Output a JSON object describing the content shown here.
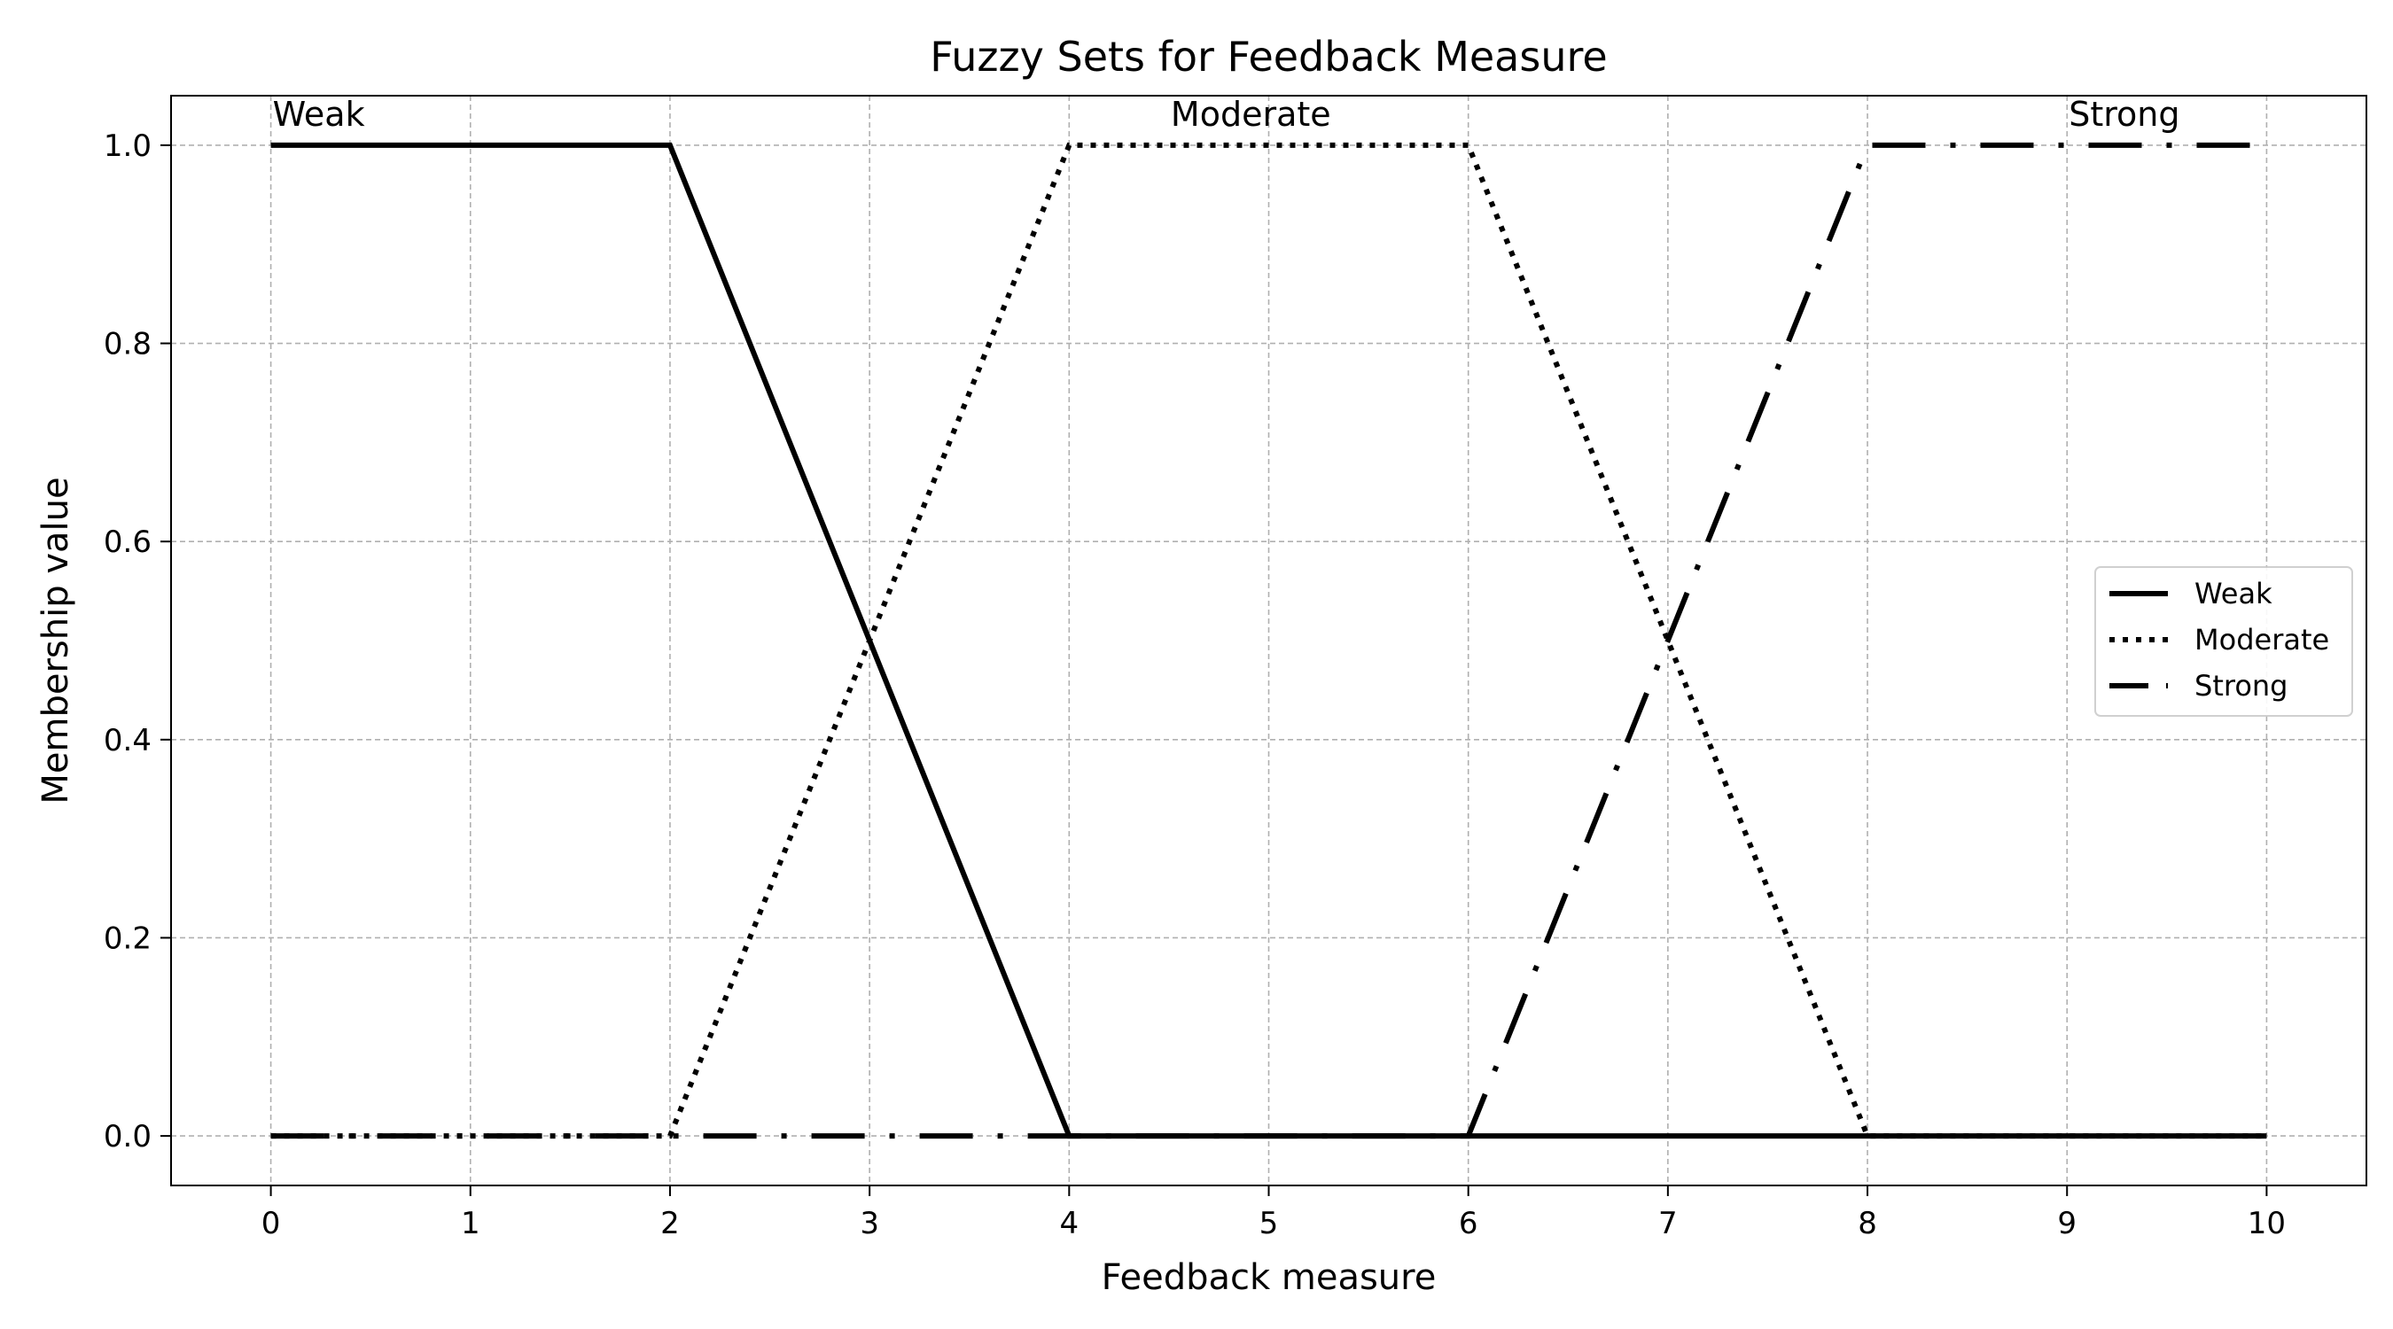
{
  "chart_data": {
    "type": "line",
    "title": "Fuzzy Sets for Feedback Measure",
    "xlabel": "Feedback measure",
    "ylabel": "Membership value",
    "xlim": [
      -0.5,
      10.5
    ],
    "ylim": [
      -0.05,
      1.05
    ],
    "xticks": [
      0,
      1,
      2,
      3,
      4,
      5,
      6,
      7,
      8,
      9,
      10
    ],
    "xtick_labels": [
      "0",
      "1",
      "2",
      "3",
      "4",
      "5",
      "6",
      "7",
      "8",
      "9",
      "10"
    ],
    "yticks": [
      0.0,
      0.2,
      0.4,
      0.6,
      0.8,
      1.0
    ],
    "ytick_labels": [
      "0.0",
      "0.2",
      "0.4",
      "0.6",
      "0.8",
      "1.0"
    ],
    "grid": true,
    "legend_position": "center-right",
    "series": [
      {
        "name": "Weak",
        "style": "solid",
        "color": "#000000",
        "x": [
          0,
          2,
          4,
          10
        ],
        "y": [
          1.0,
          1.0,
          0.0,
          0.0
        ]
      },
      {
        "name": "Moderate",
        "style": "dotted",
        "color": "#000000",
        "x": [
          0,
          2,
          4,
          6,
          8,
          10
        ],
        "y": [
          0.0,
          0.0,
          1.0,
          1.0,
          0.0,
          0.0
        ]
      },
      {
        "name": "Strong",
        "style": "dashdot",
        "color": "#000000",
        "x": [
          0,
          6,
          8,
          10
        ],
        "y": [
          0.0,
          0.0,
          1.0,
          1.0
        ]
      }
    ],
    "annotations": [
      {
        "text": "Weak",
        "x": 0,
        "y": 1.0
      },
      {
        "text": "Moderate",
        "x": 4.5,
        "y": 1.0
      },
      {
        "text": "Strong",
        "x": 9,
        "y": 1.0
      }
    ]
  }
}
